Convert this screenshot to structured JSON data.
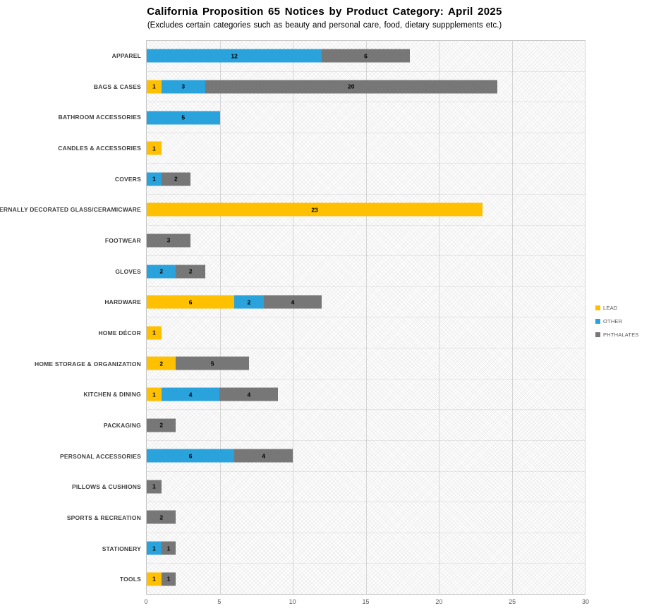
{
  "chart_data": {
    "type": "bar",
    "orientation": "horizontal",
    "stacked": true,
    "title": "California Proposition 65 Notices by Product Category: April 2025",
    "subtitle": "(Excludes certain categories such as beauty and personal care, food, dietary suppplements etc.)",
    "xlim": [
      0,
      30
    ],
    "xticks": [
      0,
      5,
      10,
      15,
      20,
      25,
      30
    ],
    "grid": true,
    "legend_position": "right",
    "colors": {
      "LEAD": "#FFC000",
      "OTHER": "#2AA2DC",
      "PHTHALATES": "#777777"
    },
    "categories": [
      "APPAREL",
      "BAGS & CASES",
      "BATHROOM ACCESSORIES",
      "CANDLES & ACCESSORIES",
      "COVERS",
      "EXTERNALLY DECORATED GLASS/CERAMICWARE",
      "FOOTWEAR",
      "GLOVES",
      "HARDWARE",
      "HOME DÉCOR",
      "HOME STORAGE & ORGANIZATION",
      "KITCHEN & DINING",
      "PACKAGING",
      "PERSONAL ACCESSORIES",
      "PILLOWS & CUSHIONS",
      "SPORTS & RECREATION",
      "STATIONERY",
      "TOOLS"
    ],
    "series": [
      {
        "name": "LEAD",
        "values": [
          0,
          1,
          0,
          1,
          0,
          23,
          0,
          0,
          6,
          1,
          2,
          1,
          0,
          0,
          0,
          0,
          0,
          1
        ]
      },
      {
        "name": "OTHER",
        "values": [
          12,
          3,
          5,
          0,
          1,
          0,
          0,
          2,
          2,
          0,
          0,
          4,
          0,
          6,
          0,
          0,
          1,
          0
        ]
      },
      {
        "name": "PHTHALATES",
        "values": [
          6,
          20,
          0,
          0,
          2,
          0,
          3,
          2,
          4,
          0,
          5,
          4,
          2,
          4,
          1,
          2,
          1,
          1
        ]
      }
    ]
  }
}
